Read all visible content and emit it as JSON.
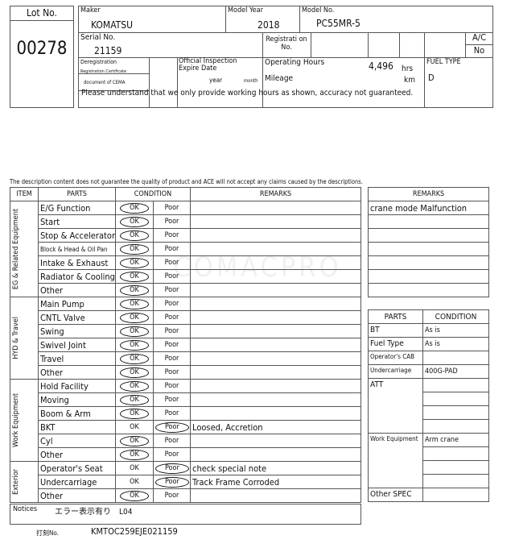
{
  "header": {
    "lot_label": "Lot No.",
    "lot_value": "00278",
    "maker_label": "Maker",
    "maker_value": "KOMATSU",
    "model_year_label": "Model Year",
    "model_year_value": "2018",
    "model_no_label": "Model No.",
    "model_no_value": "PC55MR-5",
    "serial_label": "Serial No.",
    "serial_value": "21159",
    "registration_label": "Registrati on No.",
    "ac_label": "A/C",
    "ac_value": "No",
    "dereg_label": "Deregistration",
    "reg_cert_label": "Registration Certificate",
    "cema_label": "document of CEMA",
    "inspection_label": "Official Inspection Expire Date",
    "year_label": "year",
    "month_label": "month",
    "hours_label": "Operating Hours",
    "hours_value": "4,496",
    "hours_unit": "hrs",
    "mileage_label": "Mileage",
    "mileage_unit": "km",
    "fuel_label": "FUEL TYPE",
    "fuel_value": "D",
    "notice": "Please understand that we only provide working hours as shown, accuracy not guaranteed."
  },
  "disclaimer": "The description content does not guarantee the quality of product and ACE will not accept any claims caused by the descriptions.",
  "watermark": "COMACPRO",
  "inspection": {
    "headers": {
      "item": "ITEM",
      "parts": "PARTS",
      "condition": "CONDITION",
      "remarks": "REMARKS"
    },
    "ok_label": "OK",
    "poor_label": "Poor",
    "groups": [
      {
        "name": "EG & Related Equipment",
        "rows": [
          {
            "part": "E/G Function",
            "cond": "OK",
            "remark": ""
          },
          {
            "part": "Start",
            "cond": "OK",
            "remark": ""
          },
          {
            "part": "Stop & Accelerator",
            "cond": "OK",
            "remark": ""
          },
          {
            "part": "Block & Head & Oil Pan",
            "cond": "OK",
            "remark": "",
            "small": true
          },
          {
            "part": "Intake & Exhaust",
            "cond": "OK",
            "remark": ""
          },
          {
            "part": "Radiator & Cooling",
            "cond": "OK",
            "remark": ""
          },
          {
            "part": "Other",
            "cond": "OK",
            "remark": ""
          }
        ]
      },
      {
        "name": "HYD & Travel",
        "rows": [
          {
            "part": "Main Pump",
            "cond": "OK",
            "remark": ""
          },
          {
            "part": "CNTL Valve",
            "cond": "OK",
            "remark": ""
          },
          {
            "part": "Swing",
            "cond": "OK",
            "remark": ""
          },
          {
            "part": "Swivel Joint",
            "cond": "OK",
            "remark": ""
          },
          {
            "part": "Travel",
            "cond": "OK",
            "remark": ""
          },
          {
            "part": "Other",
            "cond": "OK",
            "remark": ""
          }
        ]
      },
      {
        "name": "Work Equipment",
        "rows": [
          {
            "part": "Hold Facility",
            "cond": "OK",
            "remark": ""
          },
          {
            "part": "Moving",
            "cond": "OK",
            "remark": ""
          },
          {
            "part": "Boom & Arm",
            "cond": "OK",
            "remark": ""
          },
          {
            "part": "BKT",
            "cond": "Poor",
            "remark": "Loosed, Accretion"
          },
          {
            "part": "Cyl",
            "cond": "OK",
            "remark": ""
          },
          {
            "part": "Other",
            "cond": "OK",
            "remark": ""
          }
        ]
      },
      {
        "name": "Exterior",
        "rows": [
          {
            "part": "Operator's Seat",
            "cond": "Poor",
            "remark": "check special note"
          },
          {
            "part": "Undercarriage",
            "cond": "Poor",
            "remark": "Track Frame Corroded"
          },
          {
            "part": "Other",
            "cond": "OK",
            "remark": ""
          }
        ]
      }
    ]
  },
  "notices": {
    "label": "Notices",
    "value": "エラー表示有り　L04"
  },
  "stamp": {
    "label": "打刻No.",
    "value": "KMTOC259EJE021159"
  },
  "side_remarks": {
    "header": "REMARKS",
    "rows": [
      "crane mode Malfunction",
      "",
      "",
      "",
      "",
      "",
      ""
    ]
  },
  "spec": {
    "headers": {
      "parts": "PARTS",
      "condition": "CONDITION"
    },
    "rows": [
      {
        "part": "BT",
        "values": [
          "As is"
        ]
      },
      {
        "part": "Fuel Type",
        "values": [
          "As is"
        ]
      },
      {
        "part": "Operator's CAB",
        "values": [
          ""
        ],
        "small": true
      },
      {
        "part": "Undercarriage",
        "values": [
          "400G-PAD"
        ],
        "small": true
      },
      {
        "part": "ATT",
        "values": [
          "",
          "",
          "",
          ""
        ]
      },
      {
        "part": "Work Equipment",
        "values": [
          "Arm crane",
          "",
          "",
          ""
        ],
        "small": true
      },
      {
        "part": "Other SPEC",
        "values": [
          ""
        ]
      }
    ]
  }
}
